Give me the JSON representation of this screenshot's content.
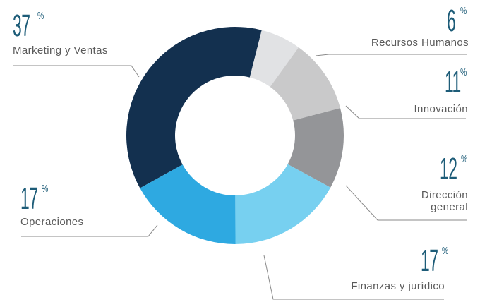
{
  "chart_data": {
    "type": "pie",
    "subtype": "donut",
    "title": "",
    "categories": [
      "Marketing y  Ventas",
      "Recursos Humanos",
      "Innovación",
      "Dirección general",
      "Finanzas y jurídico",
      "Operaciones"
    ],
    "values": [
      37,
      6,
      11,
      12,
      17,
      17
    ],
    "unit": "%",
    "colors": [
      "#13304f",
      "#e1e2e4",
      "#c9c9ca",
      "#949598",
      "#77d0f0",
      "#2ea9e1"
    ],
    "legend": "callout labels with leader lines"
  },
  "labels": {
    "marketing": {
      "pct": "37",
      "sym": "%",
      "name": "Marketing y  Ventas"
    },
    "rrhh": {
      "pct": "6",
      "sym": "%",
      "name": "Recursos Humanos"
    },
    "innovacion": {
      "pct": "11",
      "sym": "%",
      "name": "Innovación"
    },
    "direccion": {
      "pct": "12",
      "sym": "%",
      "name_line1": "Dirección",
      "name_line2": "general"
    },
    "finanzas": {
      "pct": "17",
      "sym": "%",
      "name": "Finanzas y jurídico"
    },
    "operaciones": {
      "pct": "17",
      "sym": "%",
      "name": "Operaciones"
    }
  }
}
